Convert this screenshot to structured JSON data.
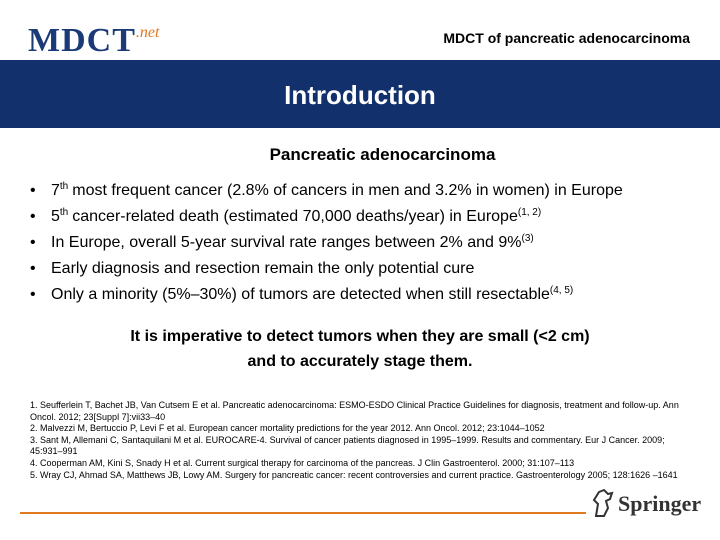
{
  "header": {
    "logo": "MDCT",
    "logo_suffix": ".net",
    "title": "MDCT of pancreatic adenocarcinoma"
  },
  "banner": {
    "title": "Introduction"
  },
  "subtitle": "Pancreatic adenocarcinoma",
  "bullets": [
    {
      "lead": "7",
      "lead_sup": "th",
      "text": "most frequent cancer (2.8% of cancers in men and 3.2% in women) in Europe"
    },
    {
      "lead": "5",
      "lead_sup": "th",
      "text": "cancer-related death (estimated 70,000 deaths/year) in Europe",
      "ref": "(1, 2)"
    },
    {
      "text": "In Europe, overall 5-year survival rate ranges between 2% and 9%",
      "ref": "(3)"
    },
    {
      "text": "Early diagnosis and resection remain the only potential cure"
    },
    {
      "text": "Only a minority (5%–30%) of tumors are detected when still resectable",
      "ref": "(4, 5)"
    }
  ],
  "emphasis": [
    "It is imperative to detect tumors when they are small (<2 cm)",
    "and to accurately stage them."
  ],
  "references": [
    "1. Seufferlein T, Bachet JB, Van Cutsem E et al. Pancreatic adenocarcinoma: ESMO-ESDO Clinical Practice Guidelines for diagnosis, treatment and follow-up. Ann Oncol. 2012; 23[Suppl 7]:vii33–40",
    "2. Malvezzi M, Bertuccio P, Levi F et al. European cancer mortality predictions for the year 2012. Ann Oncol. 2012; 23:1044–1052",
    "3. Sant M, Allemani C, Santaquilani M et al. EUROCARE-4. Survival of cancer patients diagnosed in 1995–1999. Results and commentary. Eur J Cancer. 2009; 45:931–991",
    "4. Cooperman AM, Kini S, Snady H et al. Current surgical therapy for carcinoma of the pancreas. J Clin Gastroenterol. 2000; 31:107–113",
    "5. Wray CJ, Ahmad SA, Matthews JB, Lowy AM. Surgery for pancreatic cancer: recent controversies and current practice. Gastroenterology 2005; 128:1626 –1641"
  ],
  "footer": {
    "publisher": "Springer"
  }
}
